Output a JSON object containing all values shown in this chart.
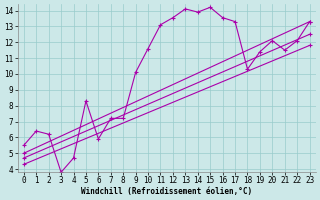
{
  "background_color": "#cce8e8",
  "line_color": "#aa00aa",
  "marker": "+",
  "markersize": 3,
  "linewidth": 0.8,
  "markeredgewidth": 0.8,
  "xlabel": "Windchill (Refroidissement éolien,°C)",
  "xlabel_fontsize": 5.5,
  "tick_fontsize": 5.5,
  "xlim": [
    -0.5,
    23.5
  ],
  "ylim": [
    3.8,
    14.4
  ],
  "yticks": [
    4,
    5,
    6,
    7,
    8,
    9,
    10,
    11,
    12,
    13,
    14
  ],
  "xticks": [
    0,
    1,
    2,
    3,
    4,
    5,
    6,
    7,
    8,
    9,
    10,
    11,
    12,
    13,
    14,
    15,
    16,
    17,
    18,
    19,
    20,
    21,
    22,
    23
  ],
  "grid_color": "#99cccc",
  "grid_linewidth": 0.5,
  "series": [
    {
      "x": [
        0,
        1,
        2,
        3,
        4,
        5,
        6,
        7,
        8,
        9,
        10,
        11,
        12,
        13,
        14,
        15,
        16,
        17,
        18,
        19,
        20,
        21,
        22,
        23
      ],
      "y": [
        5.5,
        6.4,
        6.2,
        3.8,
        4.7,
        8.3,
        5.9,
        7.2,
        7.2,
        10.1,
        11.6,
        13.1,
        13.55,
        14.1,
        13.9,
        14.2,
        13.55,
        13.3,
        10.3,
        11.4,
        12.1,
        11.5,
        12.1,
        13.3
      ]
    },
    {
      "x": [
        0,
        23
      ],
      "y": [
        5.0,
        13.3
      ]
    },
    {
      "x": [
        0,
        23
      ],
      "y": [
        4.7,
        12.5
      ]
    },
    {
      "x": [
        0,
        23
      ],
      "y": [
        4.3,
        11.8
      ]
    }
  ]
}
